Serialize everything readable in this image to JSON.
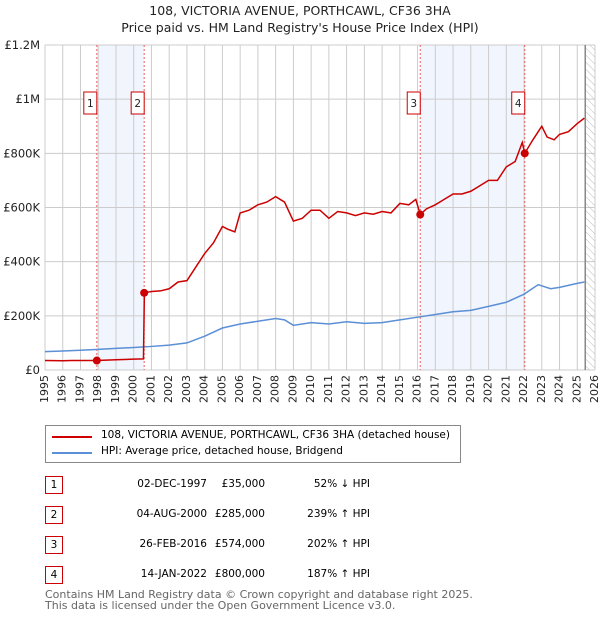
{
  "title": "108, VICTORIA AVENUE, PORTHCAWL, CF36 3HA",
  "subtitle": "Price paid vs. HM Land Registry's House Price Index (HPI)",
  "chart_data": {
    "type": "line",
    "xlim": [
      1995,
      2026
    ],
    "ylim": [
      0,
      1200000
    ],
    "yticks": [
      {
        "v": 0,
        "label": "£0"
      },
      {
        "v": 200000,
        "label": "£200K"
      },
      {
        "v": 400000,
        "label": "£400K"
      },
      {
        "v": 600000,
        "label": "£600K"
      },
      {
        "v": 800000,
        "label": "£800K"
      },
      {
        "v": 1000000,
        "label": "£1M"
      },
      {
        "v": 1200000,
        "label": "£1.2M"
      }
    ],
    "xticks": [
      1995,
      1996,
      1997,
      1998,
      1999,
      2000,
      2001,
      2002,
      2003,
      2004,
      2005,
      2006,
      2007,
      2008,
      2009,
      2010,
      2011,
      2012,
      2013,
      2014,
      2015,
      2016,
      2017,
      2018,
      2019,
      2020,
      2021,
      2022,
      2023,
      2024,
      2025,
      2026
    ],
    "forecast_start": 2025.45,
    "series": [
      {
        "name": "108, VICTORIA AVENUE, PORTHCAWL, CF36 3HA (detached house)",
        "color": "#cc0000",
        "x": [
          1995,
          1996,
          1996.5,
          1997.9,
          1999,
          2000,
          2000.55,
          2000.6,
          2001,
          2001.5,
          2002,
          2002.5,
          2003,
          2003.5,
          2004,
          2004.5,
          2005,
          2005.3,
          2005.7,
          2006,
          2006.5,
          2007,
          2007.5,
          2008,
          2008.5,
          2009,
          2009.5,
          2010,
          2010.5,
          2011,
          2011.5,
          2012,
          2012.5,
          2013,
          2013.5,
          2014,
          2014.5,
          2015,
          2015.5,
          2015.9,
          2016.15,
          2016.5,
          2017,
          2017.5,
          2018,
          2018.5,
          2019,
          2019.5,
          2020,
          2020.5,
          2021,
          2021.5,
          2021.9,
          2022.04,
          2022.5,
          2023,
          2023.3,
          2023.7,
          2024,
          2024.5,
          2025,
          2025.4
        ],
        "values": [
          35000,
          34000,
          35000,
          35000,
          38000,
          40000,
          41000,
          285000,
          290000,
          292000,
          300000,
          325000,
          330000,
          380000,
          430000,
          470000,
          530000,
          520000,
          510000,
          580000,
          590000,
          610000,
          620000,
          640000,
          620000,
          550000,
          560000,
          590000,
          590000,
          560000,
          585000,
          580000,
          570000,
          580000,
          575000,
          585000,
          580000,
          615000,
          610000,
          630000,
          574000,
          595000,
          610000,
          630000,
          650000,
          650000,
          660000,
          680000,
          700000,
          700000,
          750000,
          770000,
          840000,
          800000,
          850000,
          900000,
          860000,
          850000,
          870000,
          880000,
          910000,
          930000
        ]
      },
      {
        "name": "HPI: Average price, detached house, Bridgend",
        "color": "#5b8fd6",
        "x": [
          1995,
          1996,
          1997,
          1998,
          1999,
          2000,
          2001,
          2002,
          2003,
          2004,
          2005,
          2006,
          2007,
          2008,
          2008.5,
          2009,
          2010,
          2011,
          2012,
          2013,
          2014,
          2015,
          2016,
          2017,
          2018,
          2019,
          2020,
          2021,
          2022,
          2022.8,
          2023.5,
          2024,
          2025,
          2025.4
        ],
        "values": [
          68000,
          70000,
          73000,
          76000,
          80000,
          83000,
          87000,
          92000,
          100000,
          125000,
          155000,
          170000,
          180000,
          190000,
          185000,
          165000,
          175000,
          170000,
          178000,
          172000,
          175000,
          185000,
          195000,
          205000,
          215000,
          220000,
          235000,
          250000,
          280000,
          315000,
          300000,
          305000,
          320000,
          325000
        ]
      }
    ],
    "sales": [
      {
        "n": "1",
        "x": 1997.92,
        "y": 35000
      },
      {
        "n": "2",
        "x": 2000.59,
        "y": 285000
      },
      {
        "n": "3",
        "x": 2016.15,
        "y": 574000
      },
      {
        "n": "4",
        "x": 2022.04,
        "y": 800000
      }
    ],
    "shaded": [
      [
        1997.92,
        2000.59
      ],
      [
        2016.15,
        2022.04
      ]
    ]
  },
  "legend": {
    "property": "108, VICTORIA AVENUE, PORTHCAWL, CF36 3HA (detached house)",
    "hpi": "HPI: Average price, detached house, Bridgend"
  },
  "transactions": [
    {
      "n": "1",
      "date": "02-DEC-1997",
      "price": "£35,000",
      "hpi": "52% ↓ HPI"
    },
    {
      "n": "2",
      "date": "04-AUG-2000",
      "price": "£285,000",
      "hpi": "239% ↑ HPI"
    },
    {
      "n": "3",
      "date": "26-FEB-2016",
      "price": "£574,000",
      "hpi": "202% ↑ HPI"
    },
    {
      "n": "4",
      "date": "14-JAN-2022",
      "price": "£800,000",
      "hpi": "187% ↑ HPI"
    }
  ],
  "footer": {
    "line1": "Contains HM Land Registry data © Crown copyright and database right 2025.",
    "line2": "This data is licensed under the Open Government Licence v3.0."
  }
}
